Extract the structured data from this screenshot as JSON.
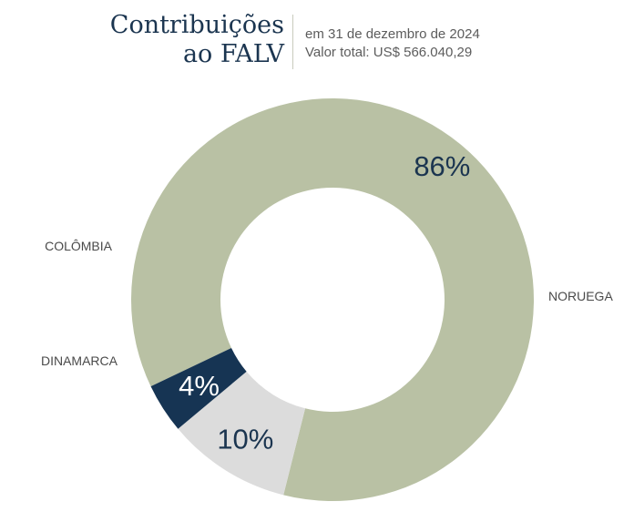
{
  "header": {
    "title_line1": "Contribuições",
    "title_line2": "ao FALV",
    "subtitle_line1": "em 31 de dezembro de 2024",
    "subtitle_line2": "Valor total: US$ 566.040,29"
  },
  "chart_data": {
    "type": "pie",
    "donut": true,
    "slices": [
      {
        "label": "NORUEGA",
        "value": 86,
        "display": "86%",
        "color": "#b9c1a4",
        "text_color": "#1b3550"
      },
      {
        "label": "DINAMARCA",
        "value": 10,
        "display": "10%",
        "color": "#dcdcdc",
        "text_color": "#1b3550"
      },
      {
        "label": "COLÔMBIA",
        "value": 4,
        "display": "4%",
        "color": "#163453",
        "text_color": "#ffffff"
      }
    ]
  }
}
